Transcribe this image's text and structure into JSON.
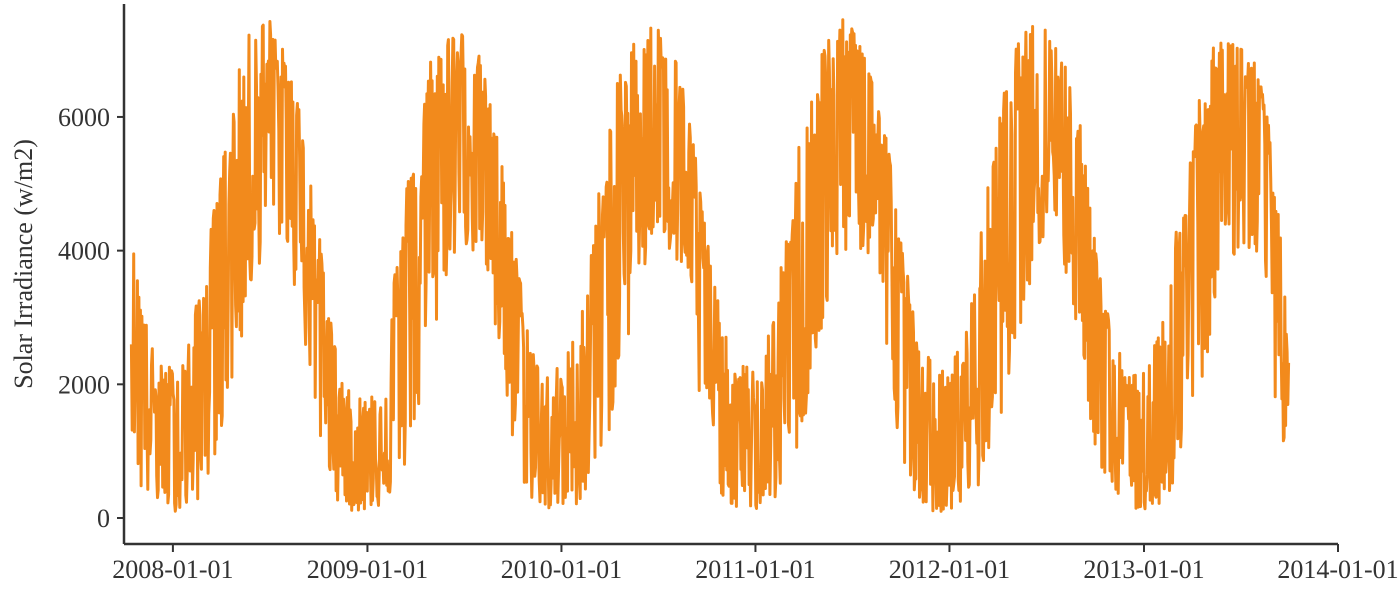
{
  "chart_data": {
    "type": "line",
    "title": "",
    "xlabel": "",
    "ylabel": "Solar Irradiance (w/m2)",
    "x_ticks": [
      "2008-01-01",
      "2009-01-01",
      "2010-01-01",
      "2011-01-01",
      "2012-01-01",
      "2013-01-01",
      "2014-01-01"
    ],
    "y_ticks": [
      0,
      2000,
      4000,
      6000
    ],
    "xlim": [
      "2007-10-01",
      "2014-01-01"
    ],
    "ylim": [
      0,
      7600
    ],
    "grid": false,
    "legend": "none",
    "series": [
      {
        "color": "#f28a1c",
        "x": [
          "2007-10-15",
          "2007-11-01",
          "2007-12-01",
          "2008-01-01",
          "2008-02-01",
          "2008-03-01",
          "2008-04-01",
          "2008-05-01",
          "2008-06-01",
          "2008-07-01",
          "2008-08-01",
          "2008-09-01",
          "2008-10-01",
          "2008-11-01",
          "2008-12-01",
          "2009-01-01",
          "2009-02-01",
          "2009-03-01",
          "2009-04-01",
          "2009-05-01",
          "2009-06-01",
          "2009-07-01",
          "2009-08-01",
          "2009-09-01",
          "2009-10-01",
          "2009-11-01",
          "2009-12-01",
          "2010-01-01",
          "2010-02-01",
          "2010-03-01",
          "2010-04-01",
          "2010-05-01",
          "2010-06-01",
          "2010-07-01",
          "2010-08-01",
          "2010-09-01",
          "2010-10-01",
          "2010-11-01",
          "2010-12-01",
          "2011-01-01",
          "2011-02-01",
          "2011-03-01",
          "2011-04-01",
          "2011-05-01",
          "2011-06-01",
          "2011-07-01",
          "2011-08-01",
          "2011-09-01",
          "2011-10-01",
          "2011-11-01",
          "2011-12-01",
          "2012-01-01",
          "2012-02-01",
          "2012-03-01",
          "2012-04-01",
          "2012-05-01",
          "2012-06-01",
          "2012-07-01",
          "2012-08-01",
          "2012-09-01",
          "2012-10-01",
          "2012-11-01",
          "2012-12-01",
          "2013-01-01",
          "2013-02-01",
          "2013-03-01",
          "2013-04-01",
          "2013-05-01",
          "2013-06-01",
          "2013-07-01",
          "2013-08-01",
          "2013-09-01",
          "2013-10-01"
        ],
        "values": [
          3900,
          2900,
          1500,
          1300,
          1500,
          2700,
          3900,
          5000,
          6000,
          6400,
          6300,
          5200,
          3400,
          1800,
          900,
          900,
          1500,
          2900,
          4000,
          5200,
          6100,
          6400,
          6100,
          5000,
          3300,
          1800,
          1000,
          1000,
          1600,
          2800,
          4100,
          5200,
          6100,
          6500,
          6100,
          5000,
          3300,
          1800,
          1000,
          1000,
          1600,
          2800,
          4100,
          5200,
          6100,
          6400,
          6100,
          5000,
          3300,
          1800,
          1000,
          1000,
          1600,
          2800,
          4100,
          5200,
          6100,
          6400,
          6100,
          5000,
          3300,
          1800,
          1000,
          1000,
          1600,
          2800,
          4100,
          5200,
          6000,
          6300,
          6000,
          4800,
          2000
        ],
        "min_values": [
          1400,
          300,
          200,
          100,
          100,
          400,
          1300,
          2300,
          3500,
          4300,
          4100,
          2800,
          1200,
          300,
          100,
          100,
          200,
          400,
          1300,
          2400,
          3700,
          4100,
          3800,
          2600,
          1000,
          300,
          100,
          100,
          200,
          500,
          1300,
          2500,
          3500,
          4200,
          3800,
          2600,
          1000,
          300,
          100,
          100,
          200,
          500,
          1300,
          2500,
          3500,
          4200,
          3800,
          2600,
          1000,
          300,
          100,
          100,
          200,
          500,
          1300,
          2500,
          3500,
          4200,
          3800,
          2600,
          1000,
          300,
          100,
          100,
          200,
          500,
          1300,
          2500,
          3500,
          4100,
          3800,
          2000,
          500
        ],
        "max_values": [
          4200,
          3300,
          2300,
          2300,
          2700,
          3800,
          5300,
          6600,
          7500,
          7500,
          6900,
          6000,
          4300,
          2600,
          1800,
          1900,
          2600,
          4200,
          5900,
          7000,
          7400,
          7300,
          6900,
          5800,
          4300,
          2800,
          2200,
          2300,
          2900,
          4300,
          6000,
          7000,
          7400,
          7400,
          7000,
          6000,
          4300,
          2800,
          2300,
          2300,
          2900,
          4300,
          6100,
          7000,
          7500,
          7400,
          7000,
          6000,
          4300,
          2800,
          2300,
          2200,
          2900,
          4300,
          6000,
          7000,
          7400,
          7400,
          7000,
          6000,
          4300,
          2800,
          2200,
          2200,
          2800,
          4300,
          6000,
          6900,
          7300,
          7200,
          6800,
          5600,
          2500
        ]
      }
    ]
  }
}
